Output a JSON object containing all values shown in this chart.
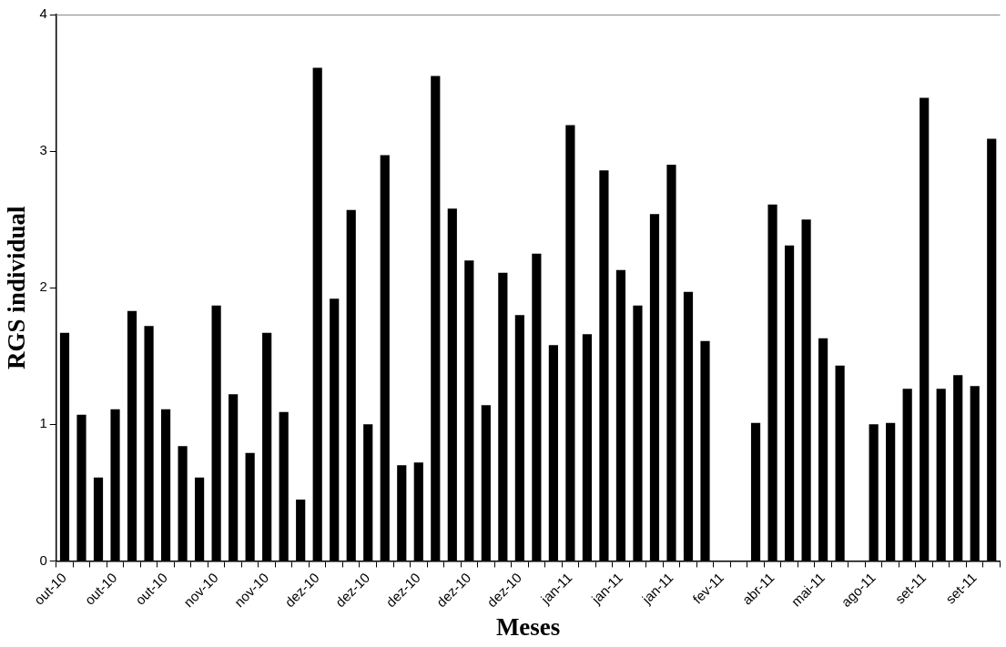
{
  "chart_data": {
    "type": "bar",
    "xlabel": "Meses",
    "ylabel": "RGS individual",
    "color": "#000000",
    "categories": [
      "out-10",
      null,
      null,
      "out-10",
      null,
      null,
      "out-10",
      null,
      null,
      "nov-10",
      null,
      null,
      "nov-10",
      null,
      null,
      "dez-10",
      null,
      null,
      "dez-10",
      null,
      null,
      "dez-10",
      null,
      null,
      "dez-10",
      null,
      null,
      "dez-10",
      null,
      null,
      "jan-11",
      null,
      null,
      "jan-11",
      null,
      null,
      "jan-11",
      null,
      null,
      "fev-11",
      null,
      null,
      "abr-11",
      null,
      null,
      "mai-11",
      null,
      null,
      "ago-11",
      null,
      null,
      "set-11",
      null,
      null,
      "set-11",
      null
    ],
    "values": [
      1.67,
      1.07,
      0.61,
      1.11,
      1.83,
      1.72,
      1.11,
      0.84,
      0.61,
      1.87,
      1.22,
      0.79,
      1.67,
      1.09,
      0.45,
      3.61,
      1.92,
      2.57,
      1.0,
      2.97,
      0.7,
      0.72,
      3.55,
      2.58,
      2.2,
      1.14,
      2.11,
      1.8,
      2.25,
      1.58,
      3.19,
      1.66,
      2.86,
      2.13,
      1.87,
      2.54,
      2.9,
      1.97,
      1.61,
      null,
      null,
      1.01,
      2.61,
      2.31,
      2.5,
      1.63,
      1.43,
      null,
      1.0,
      1.01,
      1.26,
      3.39,
      1.26,
      1.36,
      1.28,
      3.09
    ],
    "ylim": [
      0,
      4
    ],
    "yticks": [
      0,
      1,
      2,
      3,
      4
    ],
    "grid": false,
    "legend": false
  }
}
